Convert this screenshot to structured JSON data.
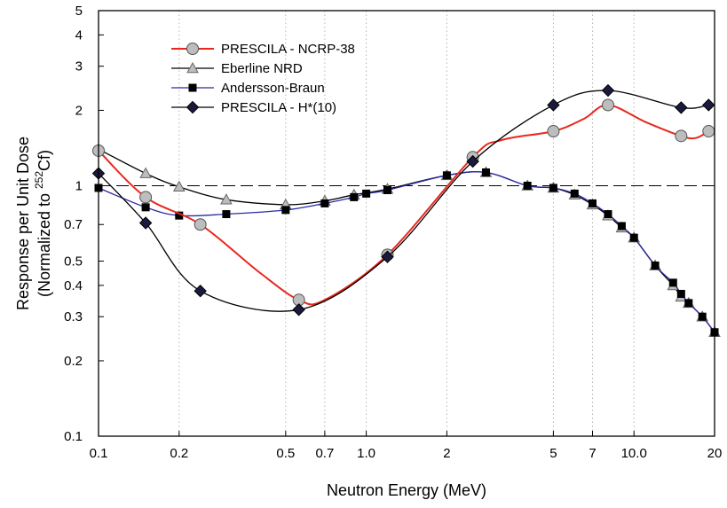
{
  "chart_data": {
    "type": "line",
    "xlabel": "Neutron Energy (MeV)",
    "ylabel_line1": "Response per Unit Dose",
    "ylabel_line2_prefix": "(Normalized to ",
    "ylabel_line2_sup": "252",
    "ylabel_line2_suffix": "Cf)",
    "x_scale": "log",
    "y_scale": "log",
    "xlim": [
      0.1,
      20
    ],
    "ylim": [
      0.1,
      5
    ],
    "x_ticks": [
      0.1,
      0.2,
      0.5,
      0.7,
      1.0,
      2,
      5,
      7,
      10.0,
      20
    ],
    "x_tick_labels": [
      "0.1",
      "0.2",
      "0.5",
      "0.7",
      "1.0",
      "2",
      "5",
      "7",
      "10.0",
      "20"
    ],
    "y_ticks": [
      0.1,
      0.2,
      0.3,
      0.4,
      0.5,
      0.7,
      1,
      2,
      3,
      4,
      5
    ],
    "y_tick_labels": [
      "0.1",
      "0.2",
      "0.3",
      "0.4",
      "0.5",
      "0.7",
      "1",
      "2",
      "3",
      "4",
      "5"
    ],
    "grid": "vertical dotted lines at labeled x ticks",
    "reference_line": {
      "y": 1,
      "style": "dashed"
    },
    "legend_position": "top-left",
    "series": [
      {
        "name": "PRESCILA - NCRP-38",
        "color": "#e8281e",
        "marker": "circle",
        "marker_fill": "#bdbdbd",
        "x": [
          0.1,
          0.15,
          0.24,
          0.56,
          1.2,
          2.5,
          5,
          8,
          15,
          19
        ],
        "y": [
          1.38,
          0.9,
          0.7,
          0.35,
          0.53,
          1.3,
          1.65,
          2.1,
          1.58,
          1.65
        ],
        "curve": {
          "x": [
            0.1,
            0.15,
            0.24,
            0.4,
            0.56,
            0.7,
            1.2,
            2.5,
            3.2,
            5,
            6.5,
            8,
            11,
            15,
            17,
            19
          ],
          "y": [
            1.38,
            0.9,
            0.7,
            0.45,
            0.35,
            0.35,
            0.53,
            1.3,
            1.52,
            1.65,
            1.85,
            2.1,
            1.8,
            1.58,
            1.55,
            1.65
          ]
        }
      },
      {
        "name": "Eberline NRD",
        "color": "#000000",
        "marker": "triangle",
        "marker_fill": "#bdbdbd",
        "x": [
          0.1,
          0.15,
          0.2,
          0.3,
          0.5,
          0.7,
          0.9,
          1.2,
          2,
          2.8,
          4,
          5,
          6,
          7,
          8,
          9,
          10,
          12,
          14,
          15,
          16,
          18,
          20
        ],
        "y": [
          1.4,
          1.12,
          0.99,
          0.88,
          0.84,
          0.87,
          0.92,
          0.97,
          1.1,
          1.13,
          1.0,
          0.98,
          0.92,
          0.84,
          0.76,
          0.68,
          0.62,
          0.48,
          0.4,
          0.36,
          0.34,
          0.3,
          0.26
        ]
      },
      {
        "name": "Andersson-Braun",
        "color": "#2a2aa5",
        "marker": "square",
        "marker_fill": "#000000",
        "x": [
          0.1,
          0.15,
          0.2,
          0.3,
          0.5,
          0.7,
          0.9,
          1.0,
          1.2,
          2,
          2.8,
          4,
          5,
          6,
          7,
          8,
          9,
          10,
          12,
          14,
          15,
          16,
          18,
          20
        ],
        "y": [
          0.98,
          0.82,
          0.76,
          0.77,
          0.8,
          0.85,
          0.9,
          0.93,
          0.96,
          1.1,
          1.13,
          1.0,
          0.98,
          0.93,
          0.85,
          0.77,
          0.69,
          0.62,
          0.48,
          0.41,
          0.37,
          0.34,
          0.3,
          0.26
        ]
      },
      {
        "name": "PRESCILA - H*(10)",
        "color": "#000000",
        "marker": "diamond",
        "marker_fill": "#1a1a3e",
        "x": [
          0.1,
          0.15,
          0.24,
          0.56,
          1.2,
          2.5,
          5,
          8,
          15,
          19
        ],
        "y": [
          1.12,
          0.71,
          0.38,
          0.32,
          0.52,
          1.25,
          2.1,
          2.4,
          2.05,
          2.1
        ]
      }
    ]
  }
}
